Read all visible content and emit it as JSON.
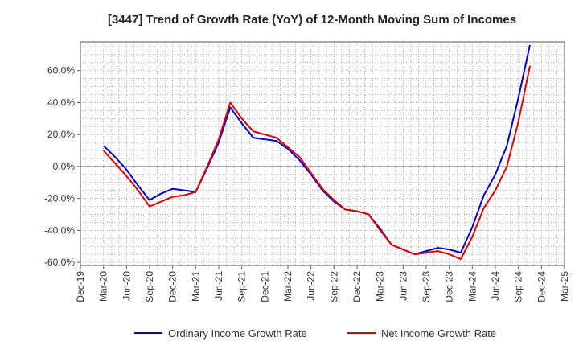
{
  "chart_data": {
    "type": "line",
    "title": "[3447]  Trend of Growth Rate (YoY) of 12-Month Moving Sum of Incomes",
    "xlabel": "",
    "ylabel": "",
    "x_ticks": [
      "Dec-19",
      "Mar-20",
      "Jun-20",
      "Sep-20",
      "Dec-20",
      "Mar-21",
      "Jun-21",
      "Sep-21",
      "Dec-21",
      "Mar-22",
      "Jun-22",
      "Sep-22",
      "Dec-22",
      "Mar-23",
      "Jun-23",
      "Sep-23",
      "Dec-23",
      "Mar-24",
      "Jun-24",
      "Sep-24",
      "Dec-24",
      "Mar-25"
    ],
    "y_ticks": [
      "60.0%",
      "40.0%",
      "20.0%",
      "0.0%",
      "-20.0%",
      "-40.0%",
      "-60.0%"
    ],
    "ylim": [
      -62,
      78
    ],
    "grid": true,
    "legend_position": "bottom",
    "colors": {
      "ordinary": "#0000cc",
      "net": "#dd0000",
      "grid": "#999999",
      "axis": "#555555"
    },
    "series": [
      {
        "name": "Ordinary Income Growth Rate",
        "start_index": 1,
        "values": [
          13,
          6,
          -2,
          -12,
          -21,
          -17,
          -14,
          -15,
          -16,
          -1,
          15,
          37,
          27,
          18,
          17,
          16,
          11,
          4,
          -5,
          -15,
          -22,
          -27,
          -28,
          -30,
          -39,
          -49,
          -52,
          -55,
          -53,
          -51,
          -52,
          -54,
          -38,
          -18,
          -5,
          13,
          43,
          76
        ]
      },
      {
        "name": "Net Income Growth Rate",
        "start_index": 1,
        "values": [
          10,
          2,
          -6,
          -15,
          -25,
          -22,
          -19,
          -18,
          -16,
          0,
          17,
          40,
          30,
          22,
          20,
          18,
          12,
          6,
          -4,
          -14,
          -21,
          -27,
          -28,
          -30,
          -40,
          -49,
          -52,
          -55,
          -54,
          -53,
          -55,
          -58,
          -44,
          -26,
          -15,
          0,
          28,
          63
        ]
      }
    ]
  }
}
